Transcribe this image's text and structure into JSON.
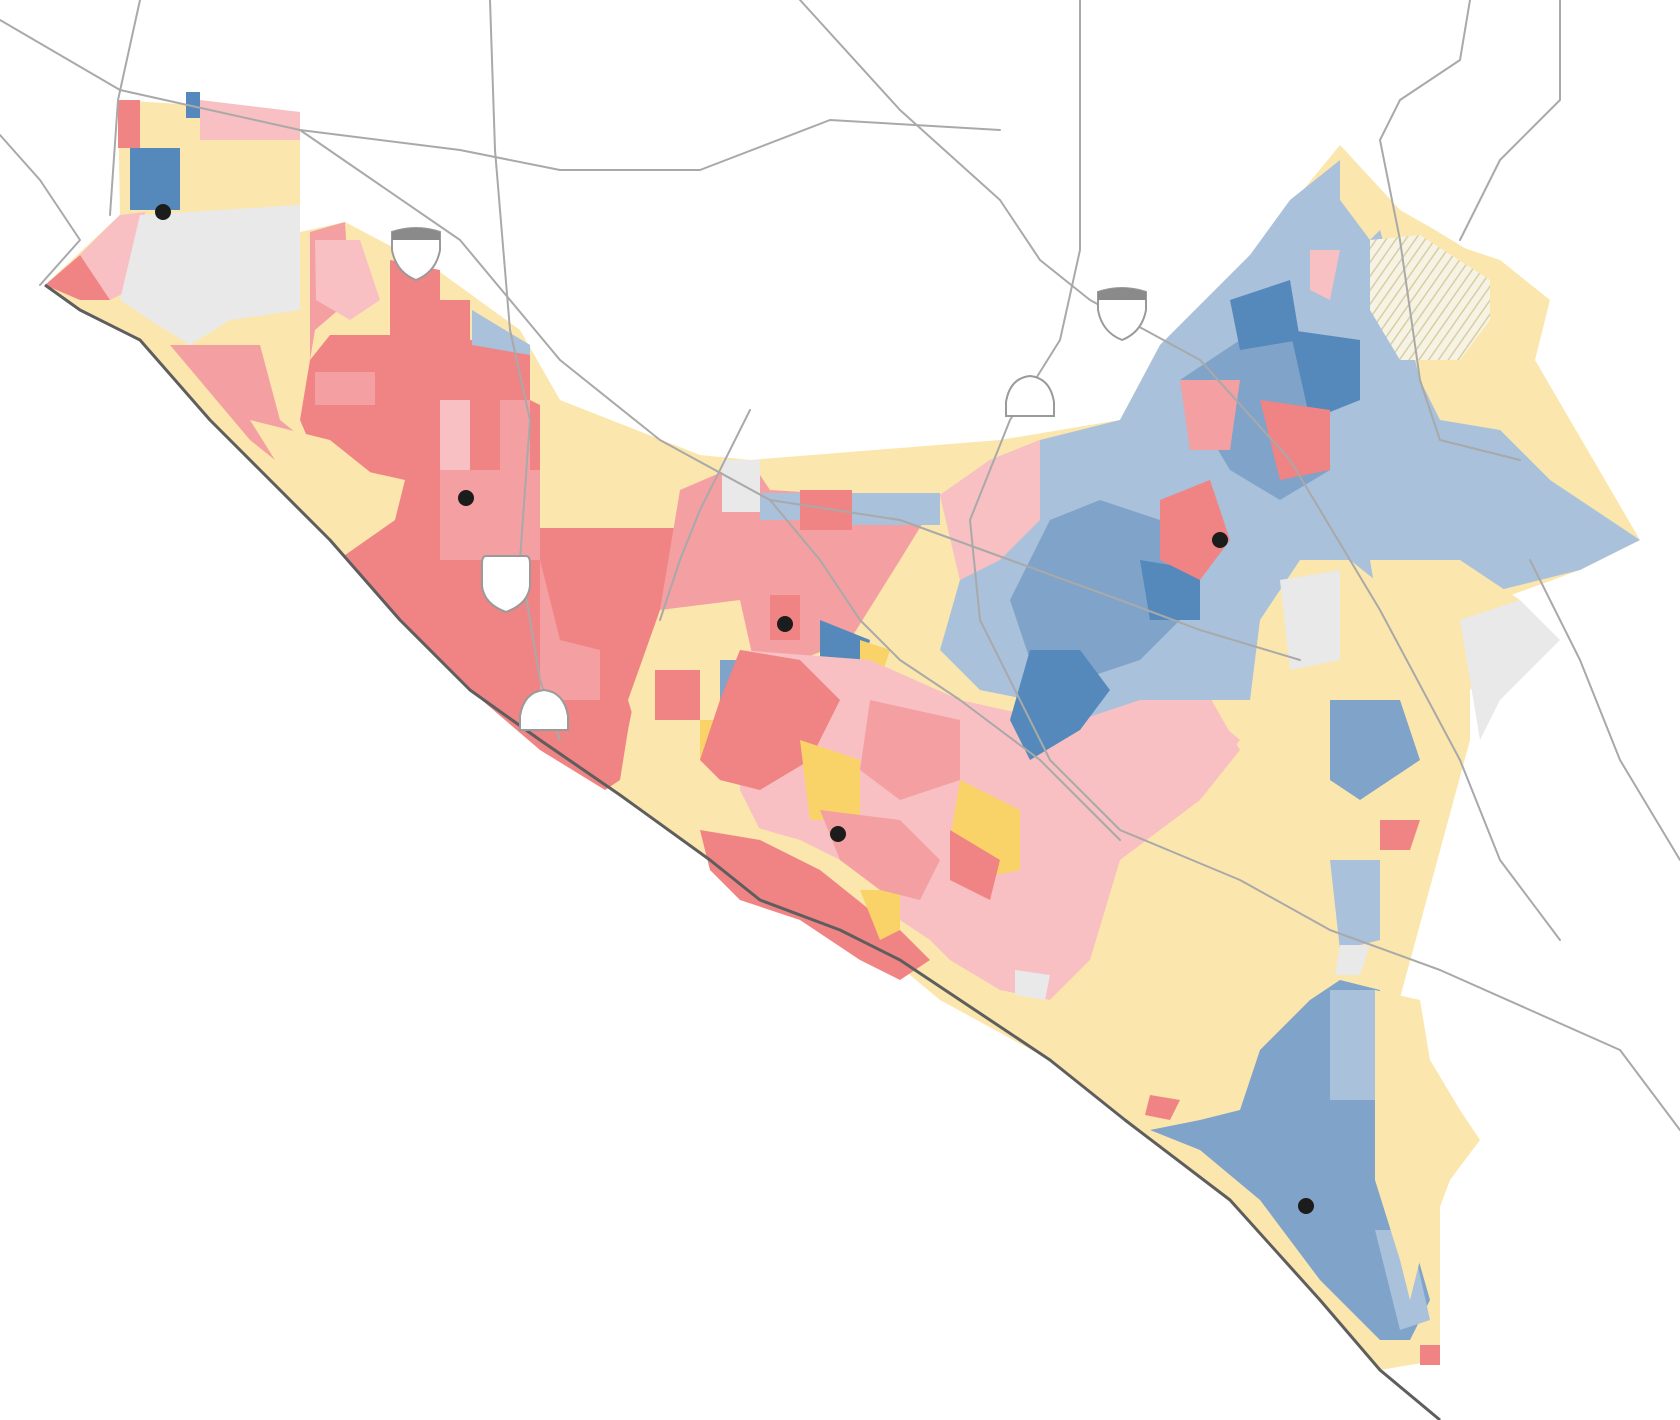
{
  "map": {
    "palette": {
      "red_strong": "#f08384",
      "red_mid": "#f4a0a3",
      "red_light": "#f8c0c2",
      "yellow_light": "#fbe6ad",
      "yellow_strong": "#f9d367",
      "blue_strong": "#5589bb",
      "blue_mid": "#7fa3c9",
      "blue_light": "#a9c1db",
      "no_data": "#e9e9e9",
      "road": "#a9a9a9",
      "coastline": "#5e5e5e",
      "city_marker": "#1c1c1c"
    },
    "highway_shields": [
      {
        "name": "interstate-shield",
        "icon": "interstate-shield-icon"
      },
      {
        "name": "interstate-shield",
        "icon": "interstate-shield-icon"
      },
      {
        "name": "us-route-shield",
        "icon": "us-route-shield-icon"
      },
      {
        "name": "state-route-shield",
        "icon": "state-route-shield-icon"
      },
      {
        "name": "state-route-shield",
        "icon": "state-route-shield-icon"
      }
    ],
    "city_markers": [
      {
        "name": "city-marker",
        "icon": "dot-icon"
      },
      {
        "name": "city-marker",
        "icon": "dot-icon"
      },
      {
        "name": "city-marker",
        "icon": "dot-icon"
      },
      {
        "name": "city-marker",
        "icon": "dot-icon"
      },
      {
        "name": "city-marker",
        "icon": "dot-icon"
      },
      {
        "name": "city-marker",
        "icon": "dot-icon"
      }
    ]
  }
}
